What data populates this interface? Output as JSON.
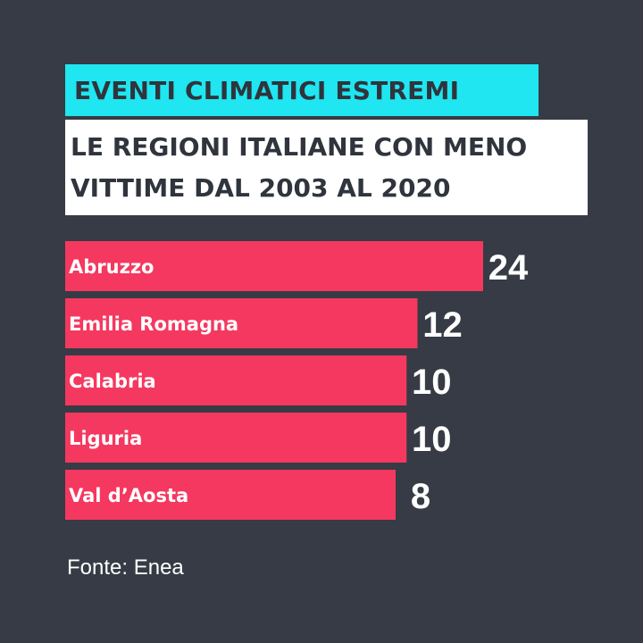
{
  "header": {
    "title": "EVENTI CLIMATICI ESTREMI",
    "subtitle_lines": [
      "LE REGIONI ITALIANE CON MENO",
      "VITTIME DAL 2003 AL 2020"
    ]
  },
  "chart_data": {
    "type": "bar",
    "orientation": "horizontal",
    "categories": [
      "Abruzzo",
      "Emilia Romagna",
      "Calabria",
      "Liguria",
      "Val d’Aosta"
    ],
    "values": [
      24,
      12,
      10,
      10,
      8
    ],
    "title": "EVENTI CLIMATICI ESTREMI",
    "subtitle": "LE REGIONI ITALIANE CON MENO VITTIME DAL 2003 AL 2020",
    "grid": false,
    "legend": "none"
  },
  "colors": {
    "background": "#363b45",
    "title_bg": "#1fe6f0",
    "title_text": "#2f343d",
    "subtitle_bg": "#ffffff",
    "bar": "#f5385f",
    "text": "#ffffff"
  },
  "source": "Fonte: Enea"
}
